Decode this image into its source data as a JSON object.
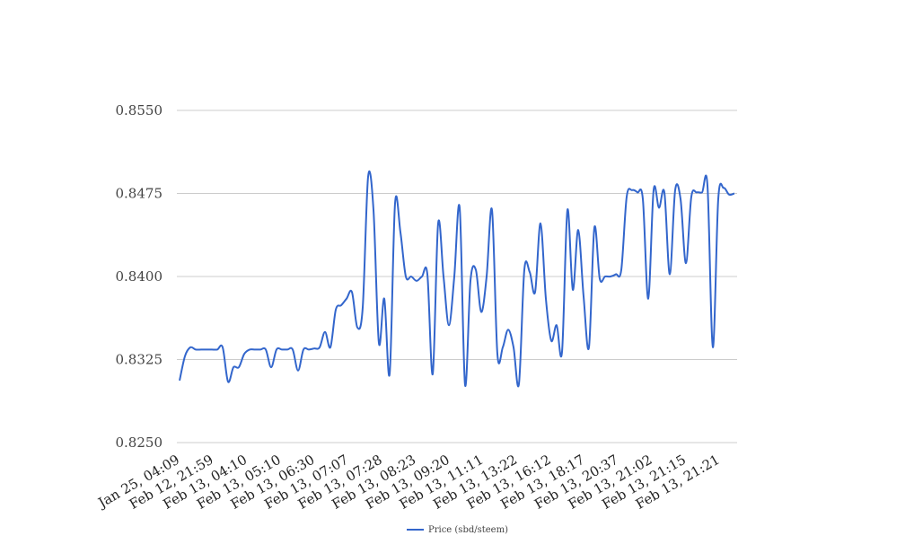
{
  "chart_data": {
    "type": "line",
    "title": "",
    "xlabel": "",
    "ylabel": "",
    "ylim": [
      0.825,
      0.855
    ],
    "yticks": [
      "0.8550",
      "0.8475",
      "0.8400",
      "0.8325",
      "0.8250"
    ],
    "ytick_values": [
      0.855,
      0.8475,
      0.84,
      0.8325,
      0.825
    ],
    "xtick_labels": [
      "Jan 25, 04:09",
      "Feb 12, 21:59",
      "Feb 13, 04:10",
      "Feb 13, 05:10",
      "Feb 13, 06:30",
      "Feb 13, 07:07",
      "Feb 13, 07:28",
      "Feb 13, 08:23",
      "Feb 13, 09:20",
      "Feb 13, 11:11",
      "Feb 13, 13:22",
      "Feb 13, 16:12",
      "Feb 13, 18:17",
      "Feb 13, 20:37",
      "Feb 13, 21:02",
      "Feb 13, 21:15",
      "Feb 13, 21:21"
    ],
    "grid": true,
    "legend_position": "bottom",
    "color": "#3366cc",
    "series": [
      {
        "name": "Price (sbd/steem)",
        "values": [
          0.8306,
          0.8328,
          0.8336,
          0.8334,
          0.8334,
          0.8334,
          0.8334,
          0.8334,
          0.8336,
          0.8305,
          0.8318,
          0.8318,
          0.833,
          0.8334,
          0.8334,
          0.8334,
          0.8334,
          0.8318,
          0.8334,
          0.8334,
          0.8334,
          0.8334,
          0.8315,
          0.8334,
          0.8334,
          0.8335,
          0.8336,
          0.835,
          0.8336,
          0.837,
          0.8374,
          0.838,
          0.8386,
          0.8354,
          0.8372,
          0.849,
          0.846,
          0.834,
          0.838,
          0.8312,
          0.8466,
          0.844,
          0.84,
          0.84,
          0.8396,
          0.84,
          0.8402,
          0.8312,
          0.8448,
          0.84,
          0.8356,
          0.84,
          0.8462,
          0.8302,
          0.8396,
          0.8406,
          0.8368,
          0.84,
          0.846,
          0.833,
          0.8336,
          0.8352,
          0.8336,
          0.8303,
          0.8406,
          0.8404,
          0.8386,
          0.8448,
          0.838,
          0.8342,
          0.8356,
          0.8332,
          0.846,
          0.8388,
          0.8442,
          0.8382,
          0.8336,
          0.8444,
          0.8398,
          0.84,
          0.84,
          0.8402,
          0.8406,
          0.8472,
          0.8478,
          0.8476,
          0.847,
          0.838,
          0.8478,
          0.8462,
          0.8476,
          0.8402,
          0.8478,
          0.847,
          0.8412,
          0.8472,
          0.8476,
          0.8476,
          0.8482,
          0.8336,
          0.847,
          0.848,
          0.8474,
          0.8475
        ]
      }
    ]
  }
}
